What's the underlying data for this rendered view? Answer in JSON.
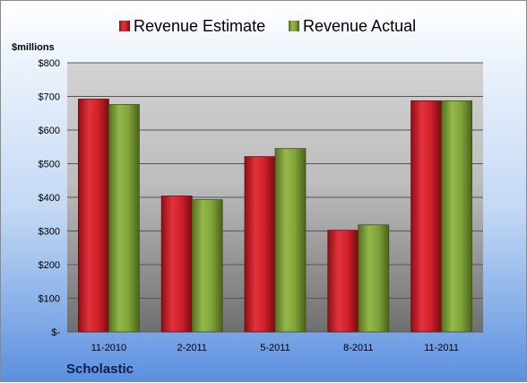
{
  "chart_data": {
    "type": "bar",
    "title": "",
    "unit_label": "$millions",
    "caption": "Scholastic",
    "categories": [
      "11-2010",
      "2-2011",
      "5-2011",
      "8-2011",
      "11-2011"
    ],
    "series": [
      {
        "name": "Revenue Estimate",
        "color": "#cc1f2a",
        "values": [
          692,
          404,
          521,
          302,
          687
        ]
      },
      {
        "name": "Revenue Actual",
        "color": "#7ea13a",
        "values": [
          676,
          393,
          545,
          318,
          687
        ]
      }
    ],
    "ylim": [
      0,
      800
    ],
    "yticks": [
      0,
      100,
      200,
      300,
      400,
      500,
      600,
      700,
      800
    ],
    "ytick_labels": [
      "$-",
      "$100",
      "$200",
      "$300",
      "$400",
      "$500",
      "$600",
      "$700",
      "$800"
    ],
    "grid": true,
    "legend_position": "top"
  }
}
